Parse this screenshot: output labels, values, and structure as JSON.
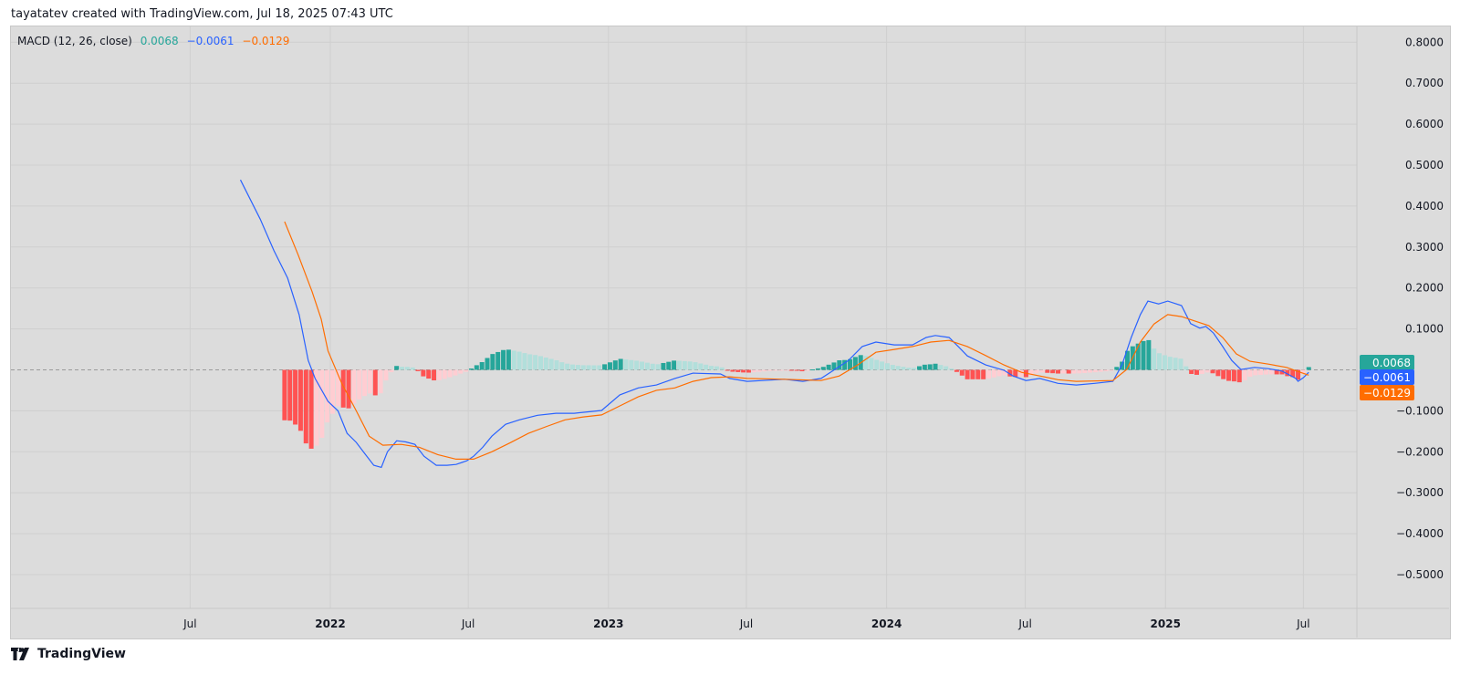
{
  "header": {
    "attribution": "tayatatev created with TradingView.com, Jul 18, 2025 07:43 UTC"
  },
  "footer": {
    "logo_text": "TradingView",
    "logo_icon": "tradingview-logo-icon"
  },
  "legend": {
    "name": "MACD (12, 26, close)",
    "histogram_value": "0.0068",
    "macd_value": "−0.0061",
    "signal_value": "−0.0129"
  },
  "badges": {
    "histogram": "0.0068",
    "macd": "−0.0061",
    "signal": "−0.0129"
  },
  "colors": {
    "macd": "#2962ff",
    "signal": "#ff6d00",
    "hist_pos_up": "#26a69a",
    "hist_pos_down": "#b2dfdb",
    "hist_neg_down": "#ff5252",
    "hist_neg_up": "#ffcdd2",
    "background": "#dcdcdc"
  },
  "chart_data": {
    "type": "line",
    "title": "MACD (12, 26, close)",
    "ylim": [
      -0.58,
      0.84
    ],
    "y_ticks": [
      "0.8000",
      "0.7000",
      "0.6000",
      "0.5000",
      "0.4000",
      "0.3000",
      "0.2000",
      "0.1000",
      "−0.1000",
      "−0.2000",
      "−0.3000",
      "−0.4000",
      "−0.5000"
    ],
    "y_tick_values": [
      0.8,
      0.7,
      0.6,
      0.5,
      0.4,
      0.3,
      0.2,
      0.1,
      -0.1,
      -0.2,
      -0.3,
      -0.4,
      -0.5
    ],
    "x_ticks": [
      {
        "label": "Jul",
        "date": "2021-07-01",
        "bold": false
      },
      {
        "label": "2022",
        "date": "2022-01-01",
        "bold": true
      },
      {
        "label": "Jul",
        "date": "2022-07-01",
        "bold": false
      },
      {
        "label": "2023",
        "date": "2023-01-01",
        "bold": true
      },
      {
        "label": "Jul",
        "date": "2023-07-01",
        "bold": false
      },
      {
        "label": "2024",
        "date": "2024-01-01",
        "bold": true
      },
      {
        "label": "Jul",
        "date": "2024-07-01",
        "bold": false
      },
      {
        "label": "2025",
        "date": "2025-01-01",
        "bold": true
      },
      {
        "label": "Jul",
        "date": "2025-07-01",
        "bold": false
      }
    ],
    "grid": true,
    "zero_line": "dashed",
    "series": [
      {
        "key": "macd",
        "points": [
          [
            "2021-09-05",
            0.464
          ],
          [
            "2021-10-01",
            0.368
          ],
          [
            "2021-10-19",
            0.291
          ],
          [
            "2021-11-06",
            0.224
          ],
          [
            "2021-11-21",
            0.135
          ],
          [
            "2021-12-03",
            0.023
          ],
          [
            "2021-12-12",
            -0.021
          ],
          [
            "2021-12-29",
            -0.077
          ],
          [
            "2022-01-11",
            -0.1
          ],
          [
            "2022-01-23",
            -0.155
          ],
          [
            "2022-02-04",
            -0.177
          ],
          [
            "2022-02-15",
            -0.204
          ],
          [
            "2022-02-27",
            -0.233
          ],
          [
            "2022-03-09",
            -0.238
          ],
          [
            "2022-03-17",
            -0.2
          ],
          [
            "2022-03-29",
            -0.173
          ],
          [
            "2022-04-10",
            -0.176
          ],
          [
            "2022-04-22",
            -0.182
          ],
          [
            "2022-05-04",
            -0.211
          ],
          [
            "2022-05-20",
            -0.233
          ],
          [
            "2022-06-03",
            -0.233
          ],
          [
            "2022-06-15",
            -0.231
          ],
          [
            "2022-06-29",
            -0.222
          ],
          [
            "2022-07-08",
            -0.211
          ],
          [
            "2022-07-20",
            -0.189
          ],
          [
            "2022-08-01",
            -0.162
          ],
          [
            "2022-08-19",
            -0.133
          ],
          [
            "2022-09-06",
            -0.122
          ],
          [
            "2022-09-30",
            -0.111
          ],
          [
            "2022-10-24",
            -0.106
          ],
          [
            "2022-11-17",
            -0.106
          ],
          [
            "2022-12-23",
            -0.099
          ],
          [
            "2023-01-16",
            -0.061
          ],
          [
            "2023-02-09",
            -0.044
          ],
          [
            "2023-03-05",
            -0.037
          ],
          [
            "2023-03-29",
            -0.021
          ],
          [
            "2023-04-22",
            -0.008
          ],
          [
            "2023-05-28",
            -0.01
          ],
          [
            "2023-06-09",
            -0.021
          ],
          [
            "2023-07-02",
            -0.028
          ],
          [
            "2023-08-20",
            -0.023
          ],
          [
            "2023-09-13",
            -0.028
          ],
          [
            "2023-10-07",
            -0.021
          ],
          [
            "2023-10-25",
            0.001
          ],
          [
            "2023-11-12",
            0.023
          ],
          [
            "2023-11-30",
            0.057
          ],
          [
            "2023-12-18",
            0.068
          ],
          [
            "2024-01-11",
            0.061
          ],
          [
            "2024-02-04",
            0.061
          ],
          [
            "2024-02-22",
            0.079
          ],
          [
            "2024-03-05",
            0.084
          ],
          [
            "2024-03-23",
            0.079
          ],
          [
            "2024-04-04",
            0.057
          ],
          [
            "2024-04-16",
            0.034
          ],
          [
            "2024-05-10",
            0.012
          ],
          [
            "2024-06-03",
            -0.001
          ],
          [
            "2024-06-15",
            -0.015
          ],
          [
            "2024-07-02",
            -0.026
          ],
          [
            "2024-07-20",
            -0.021
          ],
          [
            "2024-08-13",
            -0.033
          ],
          [
            "2024-09-06",
            -0.037
          ],
          [
            "2024-09-30",
            -0.033
          ],
          [
            "2024-10-24",
            -0.028
          ],
          [
            "2024-11-05",
            0.012
          ],
          [
            "2024-11-17",
            0.079
          ],
          [
            "2024-11-29",
            0.135
          ],
          [
            "2024-12-09",
            0.168
          ],
          [
            "2024-12-23",
            0.161
          ],
          [
            "2025-01-04",
            0.168
          ],
          [
            "2025-01-22",
            0.157
          ],
          [
            "2025-02-03",
            0.113
          ],
          [
            "2025-02-15",
            0.102
          ],
          [
            "2025-02-23",
            0.106
          ],
          [
            "2025-03-05",
            0.09
          ],
          [
            "2025-03-17",
            0.057
          ],
          [
            "2025-03-29",
            0.023
          ],
          [
            "2025-04-10",
            0.001
          ],
          [
            "2025-04-28",
            0.006
          ],
          [
            "2025-05-16",
            0.003
          ],
          [
            "2025-06-03",
            -0.003
          ],
          [
            "2025-06-21",
            -0.021
          ],
          [
            "2025-06-24",
            -0.028
          ],
          [
            "2025-07-01",
            -0.019
          ],
          [
            "2025-07-08",
            -0.0061
          ]
        ]
      },
      {
        "key": "signal",
        "points": [
          [
            "2021-11-02",
            0.362
          ],
          [
            "2021-11-20",
            0.28
          ],
          [
            "2021-12-08",
            0.191
          ],
          [
            "2021-12-20",
            0.124
          ],
          [
            "2021-12-29",
            0.046
          ],
          [
            "2022-01-16",
            -0.033
          ],
          [
            "2022-02-04",
            -0.1
          ],
          [
            "2022-02-21",
            -0.162
          ],
          [
            "2022-03-11",
            -0.184
          ],
          [
            "2022-04-04",
            -0.182
          ],
          [
            "2022-04-28",
            -0.189
          ],
          [
            "2022-05-22",
            -0.207
          ],
          [
            "2022-06-15",
            -0.218
          ],
          [
            "2022-07-08",
            -0.218
          ],
          [
            "2022-08-01",
            -0.2
          ],
          [
            "2022-08-25",
            -0.178
          ],
          [
            "2022-09-18",
            -0.155
          ],
          [
            "2022-10-12",
            -0.138
          ],
          [
            "2022-11-05",
            -0.122
          ],
          [
            "2022-11-29",
            -0.115
          ],
          [
            "2022-12-23",
            -0.11
          ],
          [
            "2023-01-16",
            -0.088
          ],
          [
            "2023-02-09",
            -0.066
          ],
          [
            "2023-03-05",
            -0.05
          ],
          [
            "2023-03-29",
            -0.044
          ],
          [
            "2023-04-22",
            -0.028
          ],
          [
            "2023-05-16",
            -0.019
          ],
          [
            "2023-06-09",
            -0.017
          ],
          [
            "2023-07-02",
            -0.021
          ],
          [
            "2023-08-20",
            -0.023
          ],
          [
            "2023-10-07",
            -0.026
          ],
          [
            "2023-10-31",
            -0.015
          ],
          [
            "2023-11-24",
            0.012
          ],
          [
            "2023-12-18",
            0.043
          ],
          [
            "2024-01-11",
            0.05
          ],
          [
            "2024-02-04",
            0.057
          ],
          [
            "2024-02-28",
            0.068
          ],
          [
            "2024-03-23",
            0.072
          ],
          [
            "2024-04-16",
            0.057
          ],
          [
            "2024-05-10",
            0.035
          ],
          [
            "2024-06-03",
            0.012
          ],
          [
            "2024-06-26",
            -0.006
          ],
          [
            "2024-07-20",
            -0.015
          ],
          [
            "2024-08-13",
            -0.024
          ],
          [
            "2024-09-06",
            -0.028
          ],
          [
            "2024-10-24",
            -0.026
          ],
          [
            "2024-11-11",
            0.001
          ],
          [
            "2024-11-29",
            0.068
          ],
          [
            "2024-12-17",
            0.112
          ],
          [
            "2025-01-04",
            0.135
          ],
          [
            "2025-01-22",
            0.13
          ],
          [
            "2025-02-09",
            0.119
          ],
          [
            "2025-02-27",
            0.108
          ],
          [
            "2025-03-17",
            0.079
          ],
          [
            "2025-04-04",
            0.039
          ],
          [
            "2025-04-22",
            0.021
          ],
          [
            "2025-05-16",
            0.014
          ],
          [
            "2025-06-09",
            0.006
          ],
          [
            "2025-06-27",
            -0.006
          ],
          [
            "2025-07-08",
            -0.0129
          ]
        ]
      }
    ]
  }
}
